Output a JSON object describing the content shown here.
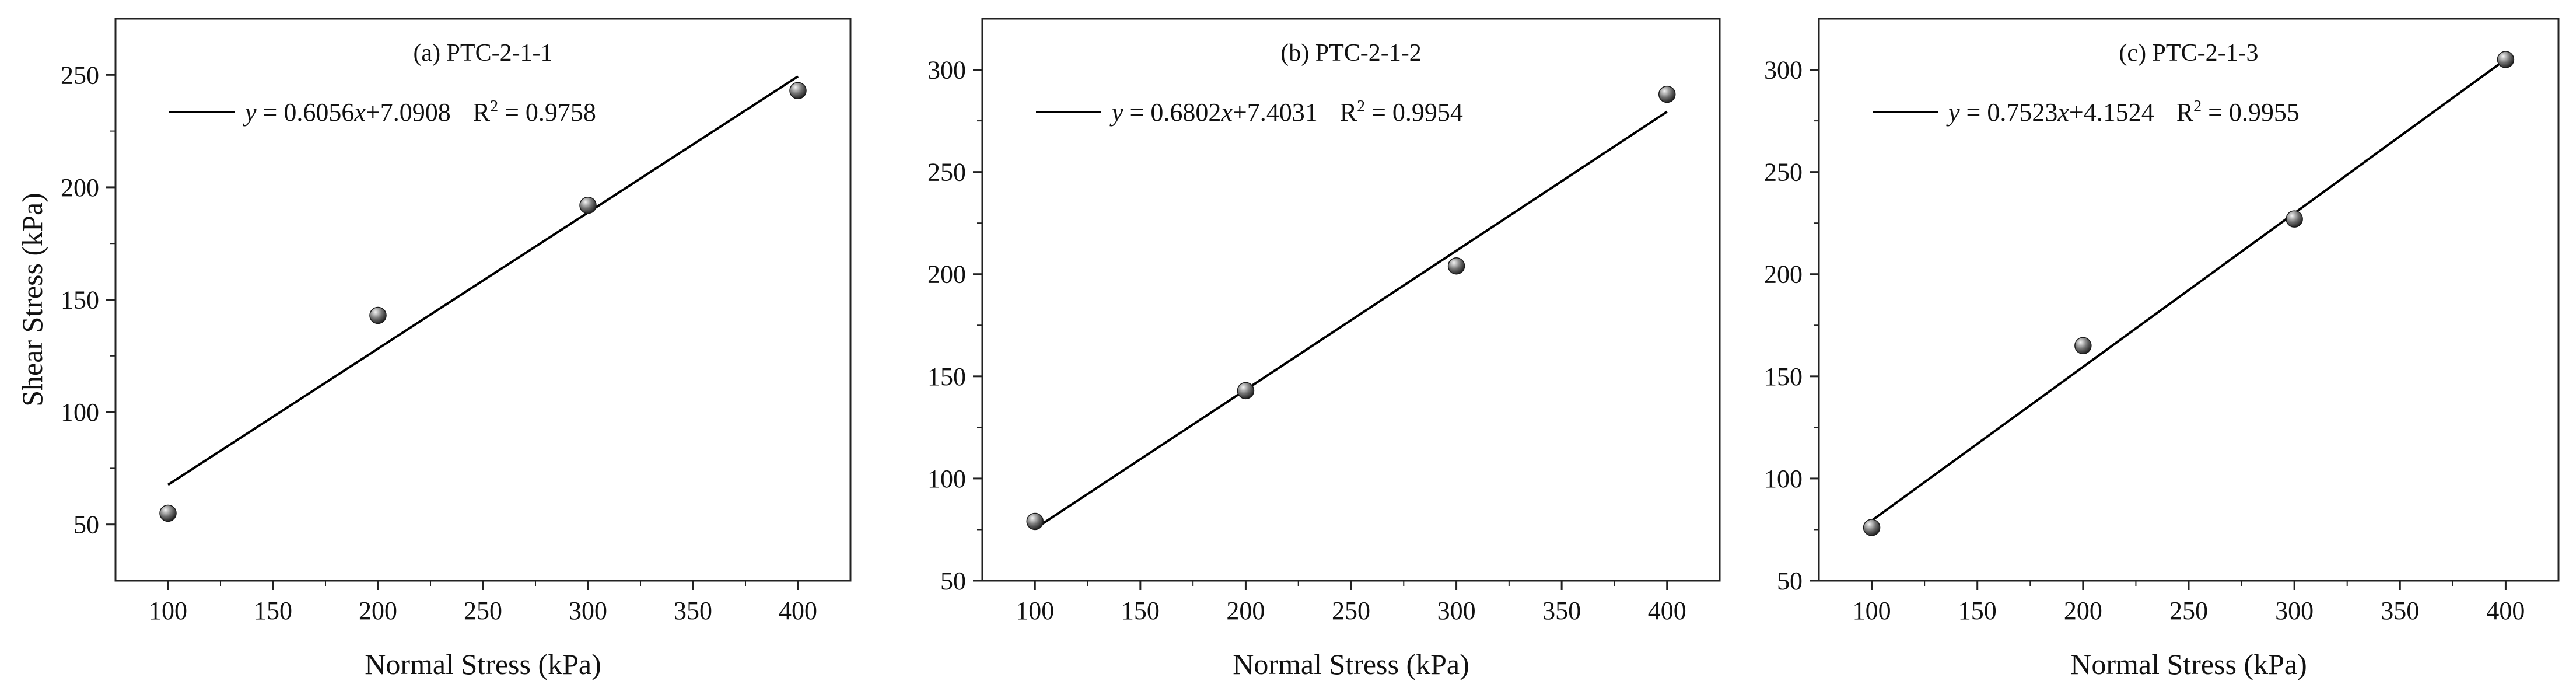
{
  "colors": {
    "axis": "#222222",
    "fit_line": "#000000",
    "marker_fill": "#6e6e6e",
    "marker_highlight": "#f2f2f2",
    "background": "#ffffff"
  },
  "chart_data": [
    {
      "type": "scatter",
      "title": "(a)  PTC-2-1-1",
      "xlabel": "Normal Stress (kPa)",
      "ylabel": "Shear Stress (kPa)",
      "xlim": [
        75,
        425
      ],
      "ylim": [
        25,
        275
      ],
      "xticks": [
        100,
        150,
        200,
        250,
        300,
        350,
        400
      ],
      "yticks": [
        50,
        100,
        150,
        200,
        250
      ],
      "xtick_labels": [
        "100",
        "150",
        "200",
        "250",
        "300",
        "350",
        "400"
      ],
      "ytick_labels": [
        "50",
        "100",
        "150",
        "200",
        "250"
      ],
      "points": {
        "x": [
          100,
          200,
          300,
          400
        ],
        "y": [
          55,
          143,
          192,
          243
        ]
      },
      "fit": {
        "slope": 0.6056,
        "intercept": 7.0908,
        "r2": 0.9758,
        "x_range": [
          100,
          400
        ]
      },
      "legend": {
        "eq_prefix": "y",
        "eq_middle": " = 0.6056",
        "eq_var": "x",
        "eq_suffix": "+7.0908",
        "r_label": "R",
        "r_sup": "2",
        "r_value": " = 0.9758",
        "placement": "top-left"
      }
    },
    {
      "type": "scatter",
      "title": "(b) PTC-2-1-2",
      "xlabel": "Normal Stress (kPa)",
      "ylabel": "",
      "xlim": [
        75,
        425
      ],
      "ylim": [
        50,
        325
      ],
      "xticks": [
        100,
        150,
        200,
        250,
        300,
        350,
        400
      ],
      "yticks": [
        50,
        100,
        150,
        200,
        250,
        300
      ],
      "xtick_labels": [
        "100",
        "150",
        "200",
        "250",
        "300",
        "350",
        "400"
      ],
      "ytick_labels": [
        "50",
        "100",
        "150",
        "200",
        "250",
        "300"
      ],
      "points": {
        "x": [
          100,
          200,
          300,
          400
        ],
        "y": [
          79,
          143,
          204,
          288
        ]
      },
      "fit": {
        "slope": 0.6802,
        "intercept": 7.4031,
        "r2": 0.9954,
        "x_range": [
          100,
          400
        ]
      },
      "legend": {
        "eq_prefix": "y",
        "eq_middle": " = 0.6802",
        "eq_var": "x",
        "eq_suffix": "+7.4031",
        "r_label": "R",
        "r_sup": "2",
        "r_value": " = 0.9954",
        "placement": "top-left"
      }
    },
    {
      "type": "scatter",
      "title": "(c) PTC-2-1-3",
      "xlabel": "Normal Stress (kPa)",
      "ylabel": "",
      "xlim": [
        75,
        425
      ],
      "ylim": [
        50,
        325
      ],
      "xticks": [
        100,
        150,
        200,
        250,
        300,
        350,
        400
      ],
      "yticks": [
        50,
        100,
        150,
        200,
        250,
        300
      ],
      "xtick_labels": [
        "100",
        "150",
        "200",
        "250",
        "300",
        "350",
        "400"
      ],
      "ytick_labels": [
        "50",
        "100",
        "150",
        "200",
        "250",
        "300"
      ],
      "points": {
        "x": [
          100,
          200,
          300,
          400
        ],
        "y": [
          76,
          165,
          227,
          305
        ]
      },
      "fit": {
        "slope": 0.7523,
        "intercept": 4.1524,
        "r2": 0.9955,
        "x_range": [
          100,
          400
        ]
      },
      "legend": {
        "eq_prefix": "y",
        "eq_middle": " = 0.7523",
        "eq_var": "x",
        "eq_suffix": "+4.1524",
        "r_label": "R",
        "r_sup": "2",
        "r_value": " = 0.9955",
        "placement": "top-left"
      }
    }
  ]
}
